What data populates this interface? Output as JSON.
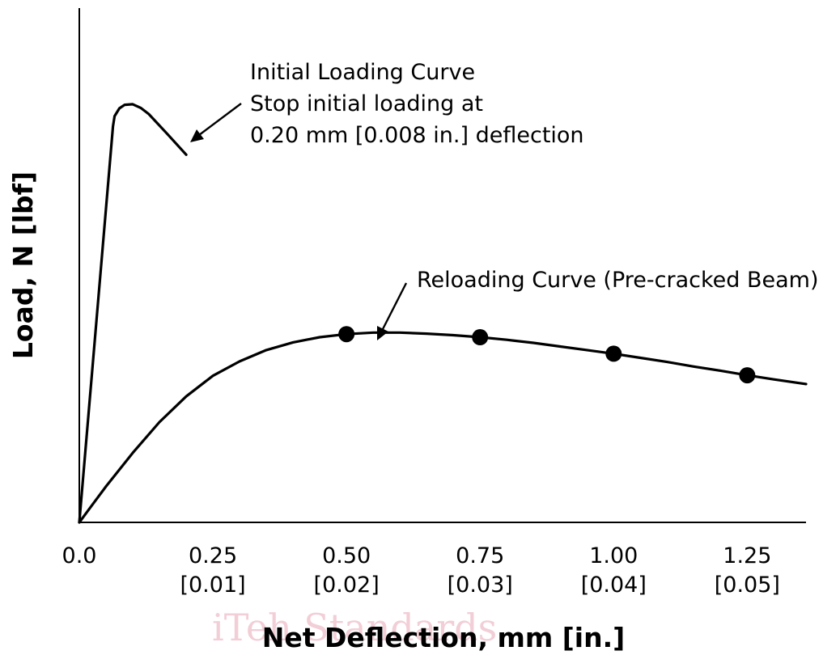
{
  "chart_data": {
    "type": "line",
    "title": "",
    "xlabel": "Net Deflection, mm [in.]",
    "ylabel": "Load, N [lbf]",
    "x_ticks": [
      {
        "value": 0.0,
        "label": "0.0",
        "sublabel": ""
      },
      {
        "value": 0.25,
        "label": "0.25",
        "sublabel": "[0.01]"
      },
      {
        "value": 0.5,
        "label": "0.50",
        "sublabel": "[0.02]"
      },
      {
        "value": 0.75,
        "label": "0.75",
        "sublabel": "[0.03]"
      },
      {
        "value": 1.0,
        "label": "1.00",
        "sublabel": "[0.04]"
      },
      {
        "value": 1.25,
        "label": "1.25",
        "sublabel": "[0.05]"
      }
    ],
    "xlim": [
      0,
      1.36
    ],
    "ylim": [
      0,
      100
    ],
    "y_ticks": [],
    "grid": false,
    "series": [
      {
        "points": [
          [
            0,
            0
          ],
          [
            0.063,
            77
          ],
          [
            0.066,
            79
          ],
          [
            0.075,
            80.5
          ],
          [
            0.085,
            81.2
          ],
          [
            0.1,
            81.3
          ],
          [
            0.115,
            80.6
          ],
          [
            0.13,
            79.4
          ],
          [
            0.165,
            75.5
          ],
          [
            0.2,
            71.5
          ]
        ]
      },
      {
        "points": [
          [
            0,
            0
          ],
          [
            0.025,
            3.5
          ],
          [
            0.05,
            7
          ],
          [
            0.1,
            13.5
          ],
          [
            0.15,
            19.5
          ],
          [
            0.2,
            24.5
          ],
          [
            0.25,
            28.5
          ],
          [
            0.3,
            31.3
          ],
          [
            0.35,
            33.5
          ],
          [
            0.4,
            35
          ],
          [
            0.45,
            36
          ],
          [
            0.5,
            36.6
          ],
          [
            0.55,
            36.9
          ],
          [
            0.6,
            36.9
          ],
          [
            0.65,
            36.7
          ],
          [
            0.7,
            36.4
          ],
          [
            0.75,
            36
          ],
          [
            0.8,
            35.5
          ],
          [
            0.85,
            34.9
          ],
          [
            0.9,
            34.2
          ],
          [
            0.95,
            33.5
          ],
          [
            1.0,
            32.8
          ],
          [
            1.05,
            32
          ],
          [
            1.1,
            31.2
          ],
          [
            1.15,
            30.3
          ],
          [
            1.2,
            29.5
          ],
          [
            1.25,
            28.6
          ],
          [
            1.3,
            27.8
          ],
          [
            1.36,
            26.9
          ]
        ]
      }
    ],
    "markers": [
      [
        0.5,
        36.6
      ],
      [
        0.75,
        36
      ],
      [
        1.0,
        32.8
      ],
      [
        1.25,
        28.6
      ]
    ],
    "annotations": [
      {
        "lines": [
          "Initial Loading Curve",
          "Stop initial loading at",
          "0.20 mm [0.008 in.] deflection"
        ],
        "target": [
          0.205,
          71.5
        ]
      },
      {
        "lines": [
          "Reloading Curve (Pre-cracked Beam)"
        ],
        "target": [
          0.55,
          36.9
        ]
      }
    ]
  },
  "watermark": "iTeh Standards"
}
